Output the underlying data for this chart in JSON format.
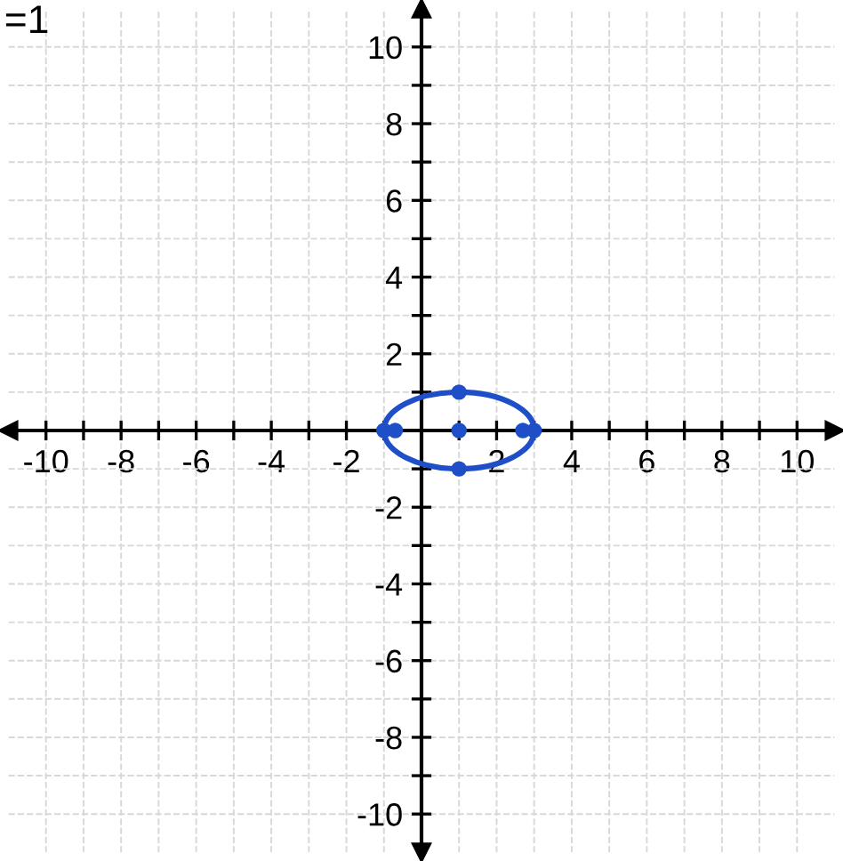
{
  "chart_data": {
    "type": "scatter",
    "annotations": [
      "=1"
    ],
    "series": [
      {
        "color": "#1f4fc8",
        "marker": "circle",
        "x": [
          -1,
          -0.7,
          1,
          2.7,
          3,
          1,
          1
        ],
        "values": [
          0,
          0,
          0,
          0,
          0,
          1,
          -1
        ]
      }
    ],
    "xlim": [
      -11,
      11
    ],
    "ylim": [
      -11,
      11
    ],
    "xticks": [
      -10,
      {
        "value": -9,
        "label": null
      },
      -8,
      {
        "value": -7,
        "label": null
      },
      -6,
      {
        "value": -5,
        "label": null
      },
      -4,
      {
        "value": -3,
        "label": null
      },
      -2,
      {
        "value": -1,
        "label": null
      },
      {
        "value": 0,
        "label": null
      },
      {
        "value": 1,
        "label": null
      },
      2,
      {
        "value": 3,
        "label": null
      },
      4,
      {
        "value": 5,
        "label": null
      },
      6,
      {
        "value": 7,
        "label": null
      },
      8,
      {
        "value": 9,
        "label": null
      },
      10
    ],
    "yticks": [
      -10,
      {
        "value": -9,
        "label": null
      },
      -8,
      {
        "value": -7,
        "label": null
      },
      -6,
      {
        "value": -5,
        "label": null
      },
      -4,
      {
        "value": -3,
        "label": null
      },
      -2,
      {
        "value": -1,
        "label": null
      },
      {
        "value": 0,
        "label": null
      },
      {
        "value": 1,
        "label": null
      },
      2,
      {
        "value": 3,
        "label": null
      },
      4,
      {
        "value": 5,
        "label": null
      },
      6,
      {
        "value": 7,
        "label": null
      },
      8,
      {
        "value": 9,
        "label": null
      },
      10
    ],
    "grid": true
  }
}
